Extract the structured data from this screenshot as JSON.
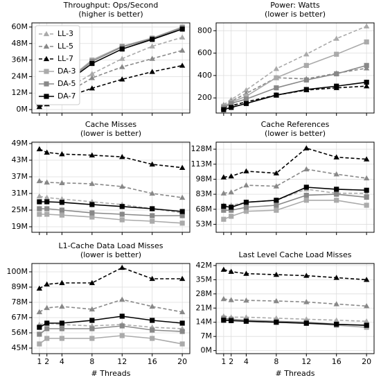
{
  "chart_data": [
    {
      "type": "line",
      "title": "Throughput: Ops/Second",
      "subtitle": "(higher is better)",
      "x": [
        1,
        2,
        4,
        8,
        12,
        16,
        20
      ],
      "xlim": [
        0,
        21
      ],
      "xticks": [
        1,
        2,
        4,
        8,
        12,
        16,
        20
      ],
      "ylim": [
        -2.5,
        63
      ],
      "yticks": [
        {
          "value": 0,
          "label": "0M"
        },
        {
          "value": 12,
          "label": "12M"
        },
        {
          "value": 24,
          "label": "24M"
        },
        {
          "value": 36,
          "label": "36M"
        },
        {
          "value": 48,
          "label": "48M"
        },
        {
          "value": 60,
          "label": "60M"
        }
      ],
      "grid": true,
      "legend": "upper left",
      "series": [
        {
          "name": "LL-3",
          "color": "#aaaaaa",
          "dash": true,
          "marker": "triangle",
          "values": [
            4,
            7,
            13,
            26,
            37,
            46,
            52.5
          ]
        },
        {
          "name": "LL-5",
          "color": "#888888",
          "dash": true,
          "marker": "triangle",
          "values": [
            3.5,
            5.5,
            10,
            23,
            31,
            37,
            43
          ]
        },
        {
          "name": "LL-7",
          "color": "#000000",
          "dash": true,
          "marker": "triangle",
          "values": [
            2,
            4,
            8,
            15.5,
            22,
            27.5,
            32
          ]
        },
        {
          "name": "DA-3",
          "color": "#aaaaaa",
          "dash": false,
          "marker": "square",
          "values": [
            5,
            9.5,
            18.5,
            36,
            46,
            52,
            60
          ]
        },
        {
          "name": "DA-5",
          "color": "#888888",
          "dash": false,
          "marker": "square",
          "values": [
            5,
            9,
            18,
            35,
            45.5,
            51.5,
            59.5
          ]
        },
        {
          "name": "DA-7",
          "color": "#000000",
          "dash": false,
          "marker": "square",
          "values": [
            4.5,
            9,
            17.5,
            33.5,
            44,
            51,
            58.5
          ]
        }
      ]
    },
    {
      "type": "line",
      "title": "Power: Watts",
      "subtitle": "(lower is better)",
      "x": [
        1,
        2,
        4,
        8,
        12,
        16,
        20
      ],
      "xlim": [
        0,
        21
      ],
      "xticks": [
        1,
        2,
        4,
        8,
        12,
        16,
        20
      ],
      "ylim": [
        65,
        870
      ],
      "yticks": [
        200,
        400,
        600,
        800
      ],
      "grid": true,
      "series": [
        {
          "color": "#aaaaaa",
          "dash": true,
          "marker": "triangle",
          "values": [
            140,
            185,
            270,
            460,
            590,
            730,
            840
          ]
        },
        {
          "color": "#888888",
          "dash": true,
          "marker": "triangle",
          "values": [
            130,
            170,
            240,
            380,
            370,
            420,
            465
          ]
        },
        {
          "color": "#000000",
          "dash": true,
          "marker": "triangle",
          "values": [
            110,
            130,
            165,
            225,
            270,
            290,
            305
          ]
        },
        {
          "color": "#aaaaaa",
          "dash": false,
          "marker": "square",
          "values": [
            125,
            160,
            215,
            380,
            490,
            590,
            700
          ]
        },
        {
          "color": "#888888",
          "dash": false,
          "marker": "square",
          "values": [
            115,
            150,
            190,
            290,
            360,
            415,
            490
          ]
        },
        {
          "color": "#000000",
          "dash": false,
          "marker": "square",
          "values": [
            95,
            115,
            150,
            225,
            275,
            305,
            340
          ]
        }
      ]
    },
    {
      "type": "line",
      "title": "Cache Misses",
      "subtitle": "(lower is better)",
      "x": [
        1,
        2,
        4,
        8,
        12,
        16,
        20
      ],
      "xlim": [
        0,
        21
      ],
      "xticks": [
        1,
        2,
        4,
        8,
        12,
        16,
        20
      ],
      "ylim": [
        17,
        49.5
      ],
      "yticks": [
        {
          "value": 19,
          "label": "19M"
        },
        {
          "value": 25,
          "label": "25M"
        },
        {
          "value": 31,
          "label": "31M"
        },
        {
          "value": 37,
          "label": "37M"
        },
        {
          "value": 43,
          "label": "43M"
        },
        {
          "value": 49,
          "label": "49M"
        }
      ],
      "grid": true,
      "series": [
        {
          "color": "#aaaaaa",
          "dash": true,
          "marker": "triangle",
          "values": [
            30,
            29.5,
            29,
            28,
            27,
            25.5,
            24
          ]
        },
        {
          "color": "#888888",
          "dash": true,
          "marker": "triangle",
          "values": [
            35.5,
            35,
            34.8,
            34.5,
            33.5,
            31,
            29.5
          ]
        },
        {
          "color": "#000000",
          "dash": true,
          "marker": "triangle",
          "values": [
            47,
            45.8,
            45.2,
            44.8,
            44.2,
            41.5,
            40.3
          ]
        },
        {
          "color": "#aaaaaa",
          "dash": false,
          "marker": "square",
          "values": [
            23.5,
            23.5,
            23.2,
            22.5,
            21.5,
            21,
            20.3
          ]
        },
        {
          "color": "#888888",
          "dash": false,
          "marker": "square",
          "values": [
            25.5,
            25.5,
            25,
            24,
            23.5,
            23,
            23
          ]
        },
        {
          "color": "#000000",
          "dash": false,
          "marker": "square",
          "values": [
            28,
            28,
            27.8,
            27,
            26.3,
            25.5,
            24.5
          ]
        }
      ]
    },
    {
      "type": "line",
      "title": "Cache References",
      "subtitle": "(lower is better)",
      "x": [
        1,
        2,
        4,
        8,
        12,
        16,
        20
      ],
      "xlim": [
        0,
        21
      ],
      "xticks": [
        1,
        2,
        4,
        8,
        12,
        16,
        20
      ],
      "ylim": [
        45,
        135
      ],
      "yticks": [
        {
          "value": 53,
          "label": "53M"
        },
        {
          "value": 68,
          "label": "68M"
        },
        {
          "value": 83,
          "label": "83M"
        },
        {
          "value": 98,
          "label": "98M"
        },
        {
          "value": 113,
          "label": "113M"
        },
        {
          "value": 128,
          "label": "128M"
        }
      ],
      "grid": true,
      "series": [
        {
          "color": "#aaaaaa",
          "dash": true,
          "marker": "triangle",
          "values": [
            72,
            72,
            75,
            77,
            88,
            84,
            84
          ]
        },
        {
          "color": "#888888",
          "dash": true,
          "marker": "triangle",
          "values": [
            84,
            85,
            92,
            91,
            108,
            103,
            99
          ]
        },
        {
          "color": "#000000",
          "dash": true,
          "marker": "triangle",
          "values": [
            100,
            101,
            106,
            104,
            129,
            120,
            118
          ]
        },
        {
          "color": "#aaaaaa",
          "dash": false,
          "marker": "square",
          "values": [
            58,
            61,
            66,
            67,
            77,
            77,
            72
          ]
        },
        {
          "color": "#888888",
          "dash": false,
          "marker": "square",
          "values": [
            67,
            67,
            70,
            72,
            82,
            83,
            80
          ]
        },
        {
          "color": "#000000",
          "dash": false,
          "marker": "square",
          "values": [
            71,
            70,
            75,
            77,
            90,
            88,
            87
          ]
        }
      ]
    },
    {
      "type": "line",
      "title": "L1-Cache Data Load Misses",
      "subtitle": "(lower is better)",
      "x": [
        1,
        2,
        4,
        8,
        12,
        16,
        20
      ],
      "xlim": [
        0,
        21
      ],
      "xticks": [
        1,
        2,
        4,
        8,
        12,
        16,
        20
      ],
      "xlabel": "# Threads",
      "ylim": [
        41,
        106
      ],
      "yticks": [
        {
          "value": 45,
          "label": "45M"
        },
        {
          "value": 56,
          "label": "56M"
        },
        {
          "value": 67,
          "label": "67M"
        },
        {
          "value": 78,
          "label": "78M"
        },
        {
          "value": 89,
          "label": "89M"
        },
        {
          "value": 100,
          "label": "100M"
        }
      ],
      "grid": true,
      "series": [
        {
          "color": "#aaaaaa",
          "dash": true,
          "marker": "triangle",
          "values": [
            62,
            63,
            62,
            61,
            62,
            60,
            59
          ]
        },
        {
          "color": "#888888",
          "dash": true,
          "marker": "triangle",
          "values": [
            71,
            74,
            75,
            73,
            80,
            75,
            71
          ]
        },
        {
          "color": "#000000",
          "dash": true,
          "marker": "triangle",
          "values": [
            88,
            91,
            92,
            92,
            103,
            95,
            95
          ]
        },
        {
          "color": "#aaaaaa",
          "dash": false,
          "marker": "square",
          "values": [
            48,
            52,
            52,
            52,
            54,
            52,
            48
          ]
        },
        {
          "color": "#888888",
          "dash": false,
          "marker": "square",
          "values": [
            55,
            59,
            59,
            59,
            61,
            58,
            57
          ]
        },
        {
          "color": "#000000",
          "dash": false,
          "marker": "square",
          "values": [
            60,
            63,
            63,
            65,
            68,
            65,
            63
          ]
        }
      ]
    },
    {
      "type": "line",
      "title": "Last Level Cache Load Misses",
      "x": [
        1,
        2,
        4,
        8,
        12,
        16,
        20
      ],
      "xlim": [
        0,
        21
      ],
      "xticks": [
        1,
        2,
        4,
        8,
        12,
        16,
        20
      ],
      "xlabel": "# Threads",
      "ylim": [
        -1.5,
        43
      ],
      "yticks": [
        {
          "value": 0,
          "label": "0M"
        },
        {
          "value": 7,
          "label": "7M"
        },
        {
          "value": 14,
          "label": "14M"
        },
        {
          "value": 21,
          "label": "21M"
        },
        {
          "value": 28,
          "label": "28M"
        },
        {
          "value": 35,
          "label": "35M"
        },
        {
          "value": 42,
          "label": "42M"
        }
      ],
      "grid": true,
      "series": [
        {
          "color": "#aaaaaa",
          "dash": true,
          "marker": "triangle",
          "values": [
            17,
            16.5,
            16.5,
            16,
            15.5,
            15,
            14.5
          ]
        },
        {
          "color": "#888888",
          "dash": true,
          "marker": "triangle",
          "values": [
            25.5,
            25,
            24.8,
            24.5,
            24,
            23,
            22
          ]
        },
        {
          "color": "#000000",
          "dash": true,
          "marker": "triangle",
          "values": [
            40,
            39,
            38,
            37.5,
            37,
            36,
            35
          ]
        },
        {
          "color": "#aaaaaa",
          "dash": false,
          "marker": "square",
          "values": [
            15.5,
            15,
            14.5,
            14,
            13.5,
            12.5,
            11.5
          ]
        },
        {
          "color": "#888888",
          "dash": false,
          "marker": "square",
          "values": [
            16,
            15.5,
            15,
            14.5,
            14,
            13,
            12.5
          ]
        },
        {
          "color": "#000000",
          "dash": false,
          "marker": "square",
          "values": [
            15,
            14.8,
            14.5,
            14,
            13.5,
            13,
            12.5
          ]
        }
      ]
    }
  ]
}
